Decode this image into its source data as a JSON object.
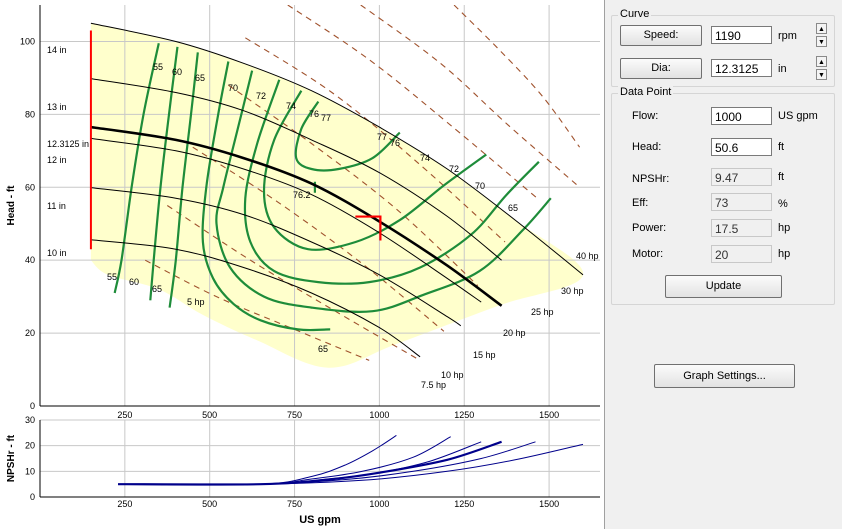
{
  "curve_panel": {
    "title": "Curve",
    "speed_button": "Speed:",
    "speed_value": "1190",
    "speed_unit": "rpm",
    "dia_button": "Dia:",
    "dia_value": "12.3125",
    "dia_unit": "in"
  },
  "data_point_panel": {
    "title": "Data Point",
    "flow_label": "Flow:",
    "flow_value": "1000",
    "flow_unit": "US gpm",
    "head_label": "Head:",
    "head_value": "50.6",
    "head_unit": "ft",
    "npshr_label": "NPSHr:",
    "npshr_value": "9.47",
    "npshr_unit": "ft",
    "eff_label": "Eff:",
    "eff_value": "73",
    "eff_unit": "%",
    "power_label": "Power:",
    "power_value": "17.5",
    "power_unit": "hp",
    "motor_label": "Motor:",
    "motor_value": "20",
    "motor_unit": "hp",
    "update_button": "Update"
  },
  "graph_settings_button": "Graph Settings...",
  "colors": {
    "operating_region": "#ffffcc",
    "head_curves": "#000000",
    "efficiency_curves": "#1e8c3a",
    "power_curves": "#a0522d",
    "npsh_curves": "#00008b",
    "limit_line": "#ff0000"
  },
  "chart_data": [
    {
      "type": "line",
      "ylabel": "Head - ft",
      "xlim": [
        0,
        1650
      ],
      "ylim": [
        0,
        110
      ],
      "yticks": [
        0,
        20,
        40,
        60,
        80,
        100
      ],
      "grid": true,
      "head_curves": [
        {
          "name": "14 in",
          "points": [
            [
              150,
              105
            ],
            [
              400,
              100
            ],
            [
              600,
              94
            ],
            [
              800,
              86.5
            ],
            [
              1000,
              76.5
            ],
            [
              1200,
              65
            ],
            [
              1400,
              51
            ],
            [
              1600,
              36
            ]
          ]
        },
        {
          "name": "13 in",
          "points": [
            [
              150,
              89.8
            ],
            [
              400,
              86
            ],
            [
              600,
              81
            ],
            [
              800,
              73
            ],
            [
              1000,
              64
            ],
            [
              1200,
              52
            ],
            [
              1360,
              40
            ]
          ]
        },
        {
          "name": "12.3125 in",
          "points": [
            [
              150,
              76.5
            ],
            [
              400,
              73
            ],
            [
              600,
              68
            ],
            [
              800,
              61
            ],
            [
              1000,
              50.6
            ],
            [
              1200,
              38.5
            ],
            [
              1360,
              27.5
            ]
          ]
        },
        {
          "name": "12 in",
          "points": [
            [
              150,
              73.4
            ],
            [
              400,
              70
            ],
            [
              600,
              65
            ],
            [
              800,
              58
            ],
            [
              1000,
              47.5
            ],
            [
              1200,
              35
            ],
            [
              1300,
              28.5
            ]
          ]
        },
        {
          "name": "11 in",
          "points": [
            [
              150,
              59.9
            ],
            [
              400,
              57
            ],
            [
              600,
              52.5
            ],
            [
              800,
              45
            ],
            [
              1000,
              36
            ],
            [
              1200,
              24.5
            ],
            [
              1240,
              22
            ]
          ]
        },
        {
          "name": "10 in",
          "points": [
            [
              150,
              45.6
            ],
            [
              400,
              43
            ],
            [
              600,
              38
            ],
            [
              800,
              31
            ],
            [
              1000,
              21.5
            ],
            [
              1120,
              13.5
            ]
          ]
        }
      ],
      "efficiency_curves": [
        {
          "name": "55",
          "points": [
            [
              350,
              99.5
            ],
            [
              305,
              80
            ],
            [
              270,
              60
            ],
            [
              240,
              40
            ],
            [
              220,
              31
            ]
          ]
        },
        {
          "name": "60",
          "points": [
            [
              405,
              98.5
            ],
            [
              380,
              80
            ],
            [
              355,
              60
            ],
            [
              335,
              40
            ],
            [
              325,
              29
            ]
          ]
        },
        {
          "name": "65",
          "points": [
            [
              465,
              97
            ],
            [
              445,
              80
            ],
            [
              420,
              60
            ],
            [
              400,
              40
            ],
            [
              382,
              27
            ]
          ]
        },
        {
          "name": "70",
          "points": [
            [
              555,
              94.5
            ],
            [
              525,
              80
            ],
            [
              490,
              60
            ],
            [
              480,
              45
            ],
            [
              510,
              35
            ],
            [
              570,
              28
            ],
            [
              650,
              23.5
            ],
            [
              760,
              21
            ],
            [
              855,
              21
            ]
          ]
        },
        {
          "name": "72",
          "points": [
            [
              625,
              92
            ],
            [
              580,
              75
            ],
            [
              540,
              60
            ],
            [
              520,
              50
            ],
            [
              560,
              38
            ],
            [
              660,
              30
            ],
            [
              800,
              27
            ],
            [
              980,
              26
            ],
            [
              1130,
              30.5
            ],
            [
              1295,
              37
            ],
            [
              1420,
              48
            ],
            [
              1505,
              57
            ]
          ]
        },
        {
          "name": "74",
          "points": [
            [
              705,
              89.5
            ],
            [
              640,
              72
            ],
            [
              605,
              57
            ],
            [
              620,
              45
            ],
            [
              690,
              37
            ],
            [
              820,
              34
            ],
            [
              970,
              34
            ],
            [
              1120,
              38
            ],
            [
              1270,
              47
            ],
            [
              1375,
              58
            ],
            [
              1470,
              67
            ]
          ]
        },
        {
          "name": "76",
          "points": [
            [
              770,
              86.5
            ],
            [
              690,
              73
            ],
            [
              660,
              59
            ],
            [
              690,
              49
            ],
            [
              790,
              43
            ],
            [
              930,
              45
            ],
            [
              1060,
              51
            ],
            [
              1190,
              60.5
            ],
            [
              1315,
              69
            ]
          ]
        },
        {
          "name": "77",
          "points": [
            [
              820,
              83.5
            ],
            [
              770,
              76
            ],
            [
              755,
              68
            ],
            [
              800,
              65
            ],
            [
              880,
              65
            ],
            [
              980,
              68
            ],
            [
              1060,
              75
            ]
          ]
        },
        {
          "name": "76.2",
          "points": [
            [
              810,
              61.5
            ],
            [
              810,
              58.5
            ]
          ]
        }
      ],
      "power_curves": [
        {
          "name": "5 hp",
          "points": [
            [
              310,
              40
            ],
            [
              520,
              30
            ],
            [
              750,
              21
            ],
            [
              970,
              12.5
            ]
          ]
        },
        {
          "name": "7.5 hp",
          "points": [
            [
              375,
              55
            ],
            [
              620,
              40
            ],
            [
              870,
              26
            ],
            [
              1120,
              12.5
            ]
          ]
        },
        {
          "name": "10 hp",
          "points": [
            [
              450,
              71
            ],
            [
              700,
              56
            ],
            [
              950,
              39
            ],
            [
              1190,
              20.5
            ]
          ]
        },
        {
          "name": "15 hp",
          "points": [
            [
              555,
              88
            ],
            [
              800,
              72
            ],
            [
              1050,
              54
            ],
            [
              1290,
              33
            ]
          ]
        },
        {
          "name": "20 hp",
          "points": [
            [
              605,
              101
            ],
            [
              860,
              86
            ],
            [
              1110,
              67
            ],
            [
              1370,
              45
            ]
          ]
        },
        {
          "name": "25 hp",
          "points": [
            [
              730,
              110
            ],
            [
              970,
              95
            ],
            [
              1210,
              77
            ],
            [
              1465,
              57
            ]
          ]
        },
        {
          "name": "30 hp",
          "points": [
            [
              945,
              110
            ],
            [
              1180,
              94
            ],
            [
              1380,
              77
            ],
            [
              1590,
              60
            ]
          ]
        },
        {
          "name": "40 hp",
          "points": [
            [
              1220,
              110
            ],
            [
              1350,
              98
            ],
            [
              1480,
              85
            ],
            [
              1590,
              71
            ]
          ]
        }
      ],
      "operating_region": [
        [
          150,
          105
        ],
        [
          400,
          100
        ],
        [
          600,
          94
        ],
        [
          800,
          86.5
        ],
        [
          1000,
          76.5
        ],
        [
          1200,
          65
        ],
        [
          1400,
          51
        ],
        [
          1600,
          36
        ],
        [
          1350,
          27.5
        ],
        [
          1050,
          17
        ],
        [
          850,
          10.5
        ],
        [
          640,
          18
        ],
        [
          480,
          25
        ],
        [
          350,
          32
        ],
        [
          200,
          36
        ],
        [
          150,
          40
        ]
      ],
      "max_flow_line": {
        "x": 150,
        "y_range": [
          43,
          103
        ]
      },
      "operating_point": {
        "flow": 1000,
        "head": 50.6
      }
    },
    {
      "type": "line",
      "ylabel": "NPSHr - ft",
      "xlabel": "US gpm",
      "xlim": [
        0,
        1650
      ],
      "ylim": [
        0,
        30
      ],
      "yticks": [
        0,
        10,
        20,
        30
      ],
      "xticks": [
        250,
        500,
        750,
        1000,
        1250,
        1500
      ],
      "grid": true,
      "npsh_curves": [
        {
          "name": "10 in",
          "points": [
            [
              230,
              5
            ],
            [
              650,
              5
            ],
            [
              800,
              8
            ],
            [
              900,
              12.5
            ],
            [
              980,
              18
            ],
            [
              1050,
              24
            ]
          ]
        },
        {
          "name": "11 in",
          "points": [
            [
              230,
              5
            ],
            [
              650,
              5
            ],
            [
              800,
              7
            ],
            [
              950,
              10
            ],
            [
              1100,
              15.5
            ],
            [
              1210,
              23.5
            ]
          ]
        },
        {
          "name": "12 in",
          "points": [
            [
              230,
              5
            ],
            [
              650,
              5
            ],
            [
              850,
              7
            ],
            [
              1000,
              9.5
            ],
            [
              1150,
              14
            ],
            [
              1300,
              21.5
            ]
          ]
        },
        {
          "name": "12.3125 in",
          "points": [
            [
              230,
              5
            ],
            [
              650,
              5
            ],
            [
              850,
              6.8
            ],
            [
              1000,
              9.47
            ],
            [
              1200,
              14.5
            ],
            [
              1360,
              21.5
            ]
          ]
        },
        {
          "name": "13 in",
          "points": [
            [
              230,
              5
            ],
            [
              650,
              5
            ],
            [
              900,
              6.8
            ],
            [
              1100,
              10
            ],
            [
              1300,
              15
            ],
            [
              1460,
              21.5
            ]
          ]
        },
        {
          "name": "14 in",
          "points": [
            [
              230,
              5
            ],
            [
              650,
              5
            ],
            [
              950,
              6.5
            ],
            [
              1200,
              10
            ],
            [
              1400,
              14.5
            ],
            [
              1600,
              20.5
            ]
          ]
        }
      ],
      "operating_point": {
        "flow": 1000,
        "npshr": 9.47
      }
    }
  ]
}
